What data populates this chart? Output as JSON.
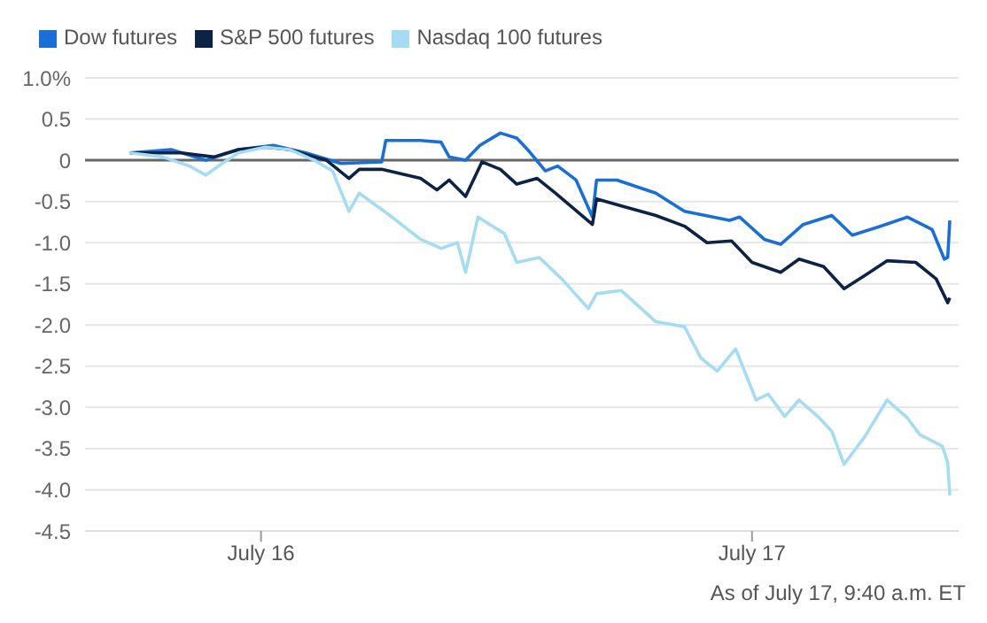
{
  "chart_data": {
    "type": "line",
    "x": [
      "--07-15T17:36",
      "--07-15T19:36",
      "--07-15T21:18",
      "--07-15T22:54",
      "--07-16T00:36",
      "--07-16T02:12",
      "--07-16T03:54",
      "--07-16T05:54",
      "--07-16T06:06",
      "--07-16T07:48",
      "--07-16T08:48",
      "--07-16T09:12",
      "--07-16T10:00",
      "--07-16T10:42",
      "--07-16T11:42",
      "--07-16T12:30",
      "--07-16T13:06",
      "--07-16T13:54",
      "--07-16T14:30",
      "--07-16T15:24",
      "--07-16T16:12",
      "--07-16T16:24",
      "--07-16T17:24",
      "--07-16T19:18",
      "--07-16T20:42",
      "--07-16T22:54",
      "--07-16T23:24",
      "--07-17T00:36",
      "--07-17T01:24",
      "--07-17T02:30",
      "--07-17T03:54",
      "--07-17T04:54",
      "--07-17T06:18",
      "--07-17T07:36",
      "--07-17T08:48",
      "--07-17T09:24",
      "--07-17T09:34",
      "--07-17T09:40"
    ],
    "series": [
      {
        "name": "Dow futures",
        "color": "#1a6fd6",
        "values": [
          0.09,
          0.13,
          0,
          0.13,
          0.18,
          0.09,
          -0.04,
          -0.02,
          0.24,
          0.24,
          0.22,
          0.04,
          0.0,
          0.18,
          0.33,
          0.27,
          0.11,
          -0.13,
          -0.07,
          -0.24,
          -0.69,
          -0.24,
          -0.24,
          -0.4,
          -0.62,
          -0.73,
          -0.69,
          -0.96,
          -1.02,
          -0.78,
          -0.67,
          -0.91,
          -0.8,
          -0.69,
          -0.84,
          -1.2,
          -1.18,
          -0.73
        ]
      },
      {
        "name": "S&P 500 futures",
        "color": "#0d2346",
        "x": [
          "--07-15T17:36",
          "--07-15T20:06",
          "--07-15T21:42",
          "--07-15T22:54",
          "--07-16T00:12",
          "--07-16T01:24",
          "--07-16T02:36",
          "--07-16T03:12",
          "--07-16T04:18",
          "--07-16T04:48",
          "--07-16T05:54",
          "--07-16T07:48",
          "--07-16T08:36",
          "--07-16T09:12",
          "--07-16T10:00",
          "--07-16T10:48",
          "--07-16T11:42",
          "--07-16T12:30",
          "--07-16T13:30",
          "--07-16T14:24",
          "--07-16T16:12",
          "--07-16T16:24",
          "--07-16T17:42",
          "--07-16T19:18",
          "--07-16T20:42",
          "--07-16T21:48",
          "--07-16T23:00",
          "--07-17T00:00",
          "--07-17T01:24",
          "--07-17T02:18",
          "--07-17T03:30",
          "--07-17T04:30",
          "--07-17T05:30",
          "--07-17T06:36",
          "--07-17T08:00",
          "--07-17T09:00",
          "--07-17T09:34",
          "--07-17T09:40"
        ],
        "values": [
          0.09,
          0.09,
          0.04,
          0.13,
          0.16,
          0.13,
          0.04,
          0,
          -0.22,
          -0.11,
          -0.11,
          -0.22,
          -0.36,
          -0.24,
          -0.44,
          -0.02,
          -0.11,
          -0.29,
          -0.22,
          -0.4,
          -0.78,
          -0.47,
          -0.56,
          -0.67,
          -0.8,
          -1.0,
          -0.98,
          -1.24,
          -1.36,
          -1.2,
          -1.29,
          -1.56,
          -1.4,
          -1.22,
          -1.24,
          -1.44,
          -1.73,
          -1.67
        ]
      },
      {
        "name": "Nasdaq 100 futures",
        "color": "#a6dcf3",
        "x": [
          "--07-15T17:36",
          "--07-15T19:12",
          "--07-15T20:30",
          "--07-15T21:18",
          "--07-15T22:06",
          "--07-15T22:54",
          "--07-16T00:12",
          "--07-16T01:24",
          "--07-16T02:36",
          "--07-16T03:30",
          "--07-16T04:18",
          "--07-16T04:48",
          "--07-16T06:18",
          "--07-16T07:48",
          "--07-16T08:48",
          "--07-16T09:36",
          "--07-16T10:00",
          "--07-16T10:36",
          "--07-16T11:54",
          "--07-16T12:30",
          "--07-16T13:36",
          "--07-16T14:42",
          "--07-16T16:00",
          "--07-16T16:24",
          "--07-16T17:36",
          "--07-16T19:18",
          "--07-16T20:42",
          "--07-16T21:30",
          "--07-16T22:18",
          "--07-16T23:12",
          "--07-17T00:12",
          "--07-17T00:48",
          "--07-17T01:36",
          "--07-17T02:18",
          "--07-17T03:18",
          "--07-17T03:54",
          "--07-17T04:30",
          "--07-17T05:30",
          "--07-17T06:36",
          "--07-17T07:36",
          "--07-17T08:12",
          "--07-17T09:18",
          "--07-17T09:34",
          "--07-17T09:40"
        ],
        "values": [
          0.09,
          0.04,
          -0.07,
          -0.18,
          -0.04,
          0.09,
          0.16,
          0.13,
          0,
          -0.13,
          -0.62,
          -0.4,
          -0.67,
          -0.96,
          -1.07,
          -1.0,
          -1.36,
          -0.69,
          -0.89,
          -1.24,
          -1.18,
          -1.44,
          -1.8,
          -1.62,
          -1.58,
          -1.96,
          -2.02,
          -2.4,
          -2.56,
          -2.29,
          -2.91,
          -2.84,
          -3.11,
          -2.91,
          -3.13,
          -3.29,
          -3.69,
          -3.36,
          -2.91,
          -3.13,
          -3.33,
          -3.47,
          -3.67,
          -4.07
        ]
      }
    ],
    "xlim": [
      "--07-15T15:24",
      "--07-17T10:06"
    ],
    "xticks": [
      {
        "value": "--07-16",
        "label": "July 16"
      },
      {
        "value": "--07-17",
        "label": "July 17"
      }
    ],
    "ylim": [
      -4.5,
      1.0
    ],
    "yticks": [
      {
        "value": 1.0,
        "label": "1.0%"
      },
      {
        "value": 0.5,
        "label": "0.5"
      },
      {
        "value": 0,
        "label": "0"
      },
      {
        "value": -0.5,
        "label": "-0.5"
      },
      {
        "value": -1.0,
        "label": "-1.0"
      },
      {
        "value": -1.5,
        "label": "-1.5"
      },
      {
        "value": -2.0,
        "label": "-2.0"
      },
      {
        "value": -2.5,
        "label": "-2.5"
      },
      {
        "value": -3.0,
        "label": "-3.0"
      },
      {
        "value": -3.5,
        "label": "-3.5"
      },
      {
        "value": -4.0,
        "label": "-4.0"
      },
      {
        "value": -4.5,
        "label": "-4.5"
      }
    ],
    "ref_lines": [
      {
        "axis": "y",
        "value": 0,
        "color": "#666666"
      }
    ],
    "grid": "y",
    "legend": "top left",
    "marker": "none",
    "line_style": "solid",
    "annotations": [
      "As of July 17, 9:40 a.m. ET"
    ]
  }
}
